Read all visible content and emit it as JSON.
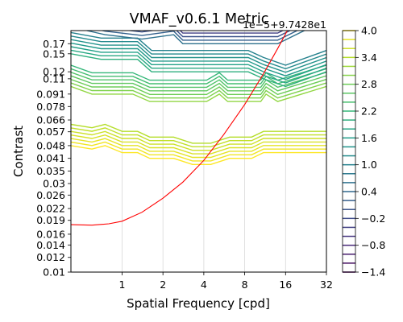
{
  "chart_data": {
    "type": "contour",
    "title": "VMAF_v0.6.1 Metric",
    "xlabel": "Spatial Frequency [cpd]",
    "ylabel": "Contrast",
    "x_scale": "log2",
    "y_scale": "log",
    "xlim": [
      0.42,
      32
    ],
    "ylim": [
      0.01,
      0.2
    ],
    "x_ticks": [
      1,
      2,
      4,
      8,
      16,
      32
    ],
    "x_tick_labels": [
      "1",
      "2",
      "4",
      "8",
      "16",
      "32"
    ],
    "y_ticks": [
      0.01,
      0.012,
      0.014,
      0.016,
      0.019,
      0.022,
      0.026,
      0.03,
      0.035,
      0.041,
      0.048,
      0.057,
      0.066,
      0.078,
      0.091,
      0.11,
      0.12,
      0.15,
      0.17
    ],
    "y_tick_labels": [
      "0.01",
      "0.012",
      "0.014",
      "0.016",
      "0.019",
      "0.022",
      "0.026",
      "0.03",
      "0.035",
      "0.041",
      "0.048",
      "0.057",
      "0.066",
      "0.078",
      "0.091",
      "0.11",
      "0.12",
      "0.15",
      "0.17"
    ],
    "x_grid": true,
    "y_grid": false,
    "colorbar": {
      "colormap": "viridis",
      "offset_label": "1e−5+9.7428e1",
      "min": -1.4,
      "max": 4.0,
      "levels": 28,
      "ticks": [
        -1.4,
        -0.8,
        -0.2,
        0.4,
        1.0,
        1.6,
        2.2,
        2.8,
        3.4,
        4.0
      ],
      "tick_labels": [
        "−1.4",
        "−0.8",
        "−0.2",
        "0.4",
        "1.0",
        "1.6",
        "2.2",
        "2.8",
        "3.4",
        "4.0"
      ]
    },
    "contour_bands": [
      {
        "level_range": [
          3.4,
          4.0
        ],
        "contrast_low": [
          0.048,
          0.046,
          0.048,
          0.044,
          0.044,
          0.041,
          0.041,
          0.038,
          0.038,
          0.041,
          0.041,
          0.044,
          0.044,
          0.044
        ],
        "x": [
          0.42,
          0.6,
          0.75,
          1.0,
          1.3,
          1.6,
          2.4,
          3.3,
          4.5,
          6.2,
          9.0,
          11.0,
          16.0,
          32.0
        ]
      },
      {
        "level_range": [
          2.2,
          3.1
        ],
        "contrast_low": [
          0.1,
          0.091,
          0.091,
          0.083,
          0.083,
          0.083,
          0.091,
          0.083,
          0.083,
          0.083,
          0.091,
          0.083,
          0.1
        ],
        "x": [
          0.42,
          0.6,
          1.2,
          1.6,
          2.4,
          4.2,
          5.2,
          6.0,
          9.0,
          10.5,
          11.5,
          14.0,
          32.0
        ]
      },
      {
        "level_range": [
          1.0,
          2.0
        ],
        "contrast_low": [
          0.15,
          0.14,
          0.14,
          0.12,
          0.12,
          0.12,
          0.11,
          0.1,
          0.12
        ],
        "x": [
          0.42,
          0.7,
          1.3,
          1.65,
          4.8,
          8.5,
          11.0,
          16.0,
          32.0
        ]
      },
      {
        "level_range": [
          -1.4,
          0.6
        ],
        "contrast_low": [
          0.2,
          0.19,
          0.18,
          0.19,
          0.17,
          0.17,
          0.2
        ],
        "x": [
          0.55,
          0.75,
          1.4,
          2.4,
          2.8,
          14.0,
          22.0
        ]
      }
    ],
    "threshold_curve": {
      "color": "#ff0000",
      "x": [
        0.42,
        0.6,
        0.8,
        1.0,
        1.4,
        2.0,
        2.8,
        4.0,
        5.6,
        8.0,
        11.0,
        14.0,
        16.5
      ],
      "y": [
        0.018,
        0.0179,
        0.0182,
        0.0188,
        0.021,
        0.025,
        0.0305,
        0.04,
        0.055,
        0.08,
        0.117,
        0.16,
        0.2
      ]
    }
  }
}
